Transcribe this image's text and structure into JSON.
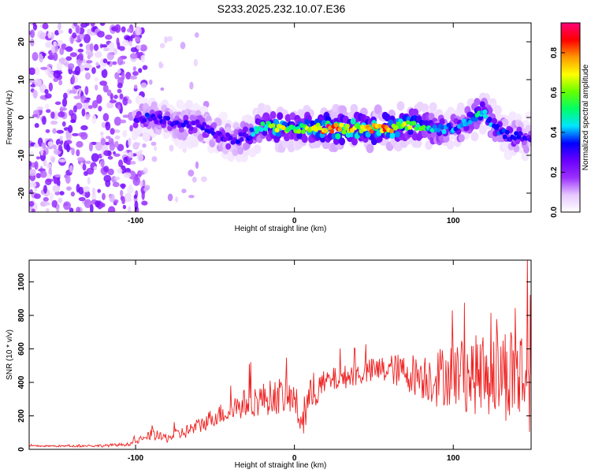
{
  "title": "S233.2025.232.10.07.E36",
  "chart_data": [
    {
      "type": "heatmap",
      "title": "",
      "xlabel": "Height of straight line (km)",
      "ylabel": "Frequency (Hz)",
      "xlim": [
        -167,
        149
      ],
      "ylim": [
        -25,
        25
      ],
      "xticks": [
        -100,
        0,
        100
      ],
      "yticks": [
        -20,
        -10,
        0,
        10,
        20
      ],
      "grid": false,
      "colorbar": {
        "label": "Normalized spectral amplitude",
        "range": [
          0,
          0.95
        ],
        "ticks": [
          0.0,
          0.2,
          0.4,
          0.6,
          0.8
        ],
        "tick_labels": [
          "0.0",
          "0.2",
          "0.4",
          "0.6",
          "0.8"
        ],
        "colormap": [
          "#ffffff",
          "#e6c8ff",
          "#9b30ff",
          "#6a00ff",
          "#0000ff",
          "#00e5ff",
          "#00ff66",
          "#66ff00",
          "#ffff00",
          "#ff9900",
          "#ff0000",
          "#ff0077"
        ]
      },
      "ridge": {
        "x": [
          -100,
          -90,
          -80,
          -70,
          -60,
          -50,
          -40,
          -30,
          -20,
          -10,
          0,
          10,
          20,
          30,
          40,
          50,
          60,
          70,
          80,
          90,
          100,
          110,
          118,
          125,
          135,
          149
        ],
        "freq": [
          -1,
          0,
          -1,
          -2,
          -2,
          -4,
          -6,
          -5,
          -2,
          -3,
          -3,
          -3,
          -3,
          -3,
          -3,
          -3,
          -3,
          -2,
          -2,
          -3,
          -3,
          -1,
          2,
          -2,
          -5,
          -5
        ],
        "amplitude": [
          0.3,
          0.35,
          0.3,
          0.3,
          0.3,
          0.3,
          0.3,
          0.35,
          0.5,
          0.7,
          0.6,
          0.65,
          0.9,
          0.8,
          0.75,
          0.85,
          0.8,
          0.65,
          0.55,
          0.45,
          0.4,
          0.45,
          0.5,
          0.4,
          0.35,
          0.3
        ]
      },
      "noise_region": {
        "x": [
          -167,
          -100
        ],
        "freq": [
          -25,
          25
        ],
        "amplitude": 0.25
      }
    },
    {
      "type": "line",
      "title": "",
      "xlabel": "Height of straight line (km)",
      "ylabel": "SNR (10 * v/v)",
      "xlim": [
        -167,
        149
      ],
      "ylim": [
        0,
        1130
      ],
      "xticks": [
        -100,
        0,
        100
      ],
      "yticks": [
        0,
        200,
        400,
        600,
        800,
        1000
      ],
      "grid": false,
      "series": [
        {
          "name": "SNR",
          "color": "#ee2222",
          "x": [
            -167,
            -140,
            -120,
            -105,
            -95,
            -90,
            -85,
            -80,
            -70,
            -60,
            -50,
            -40,
            -30,
            -20,
            -10,
            0,
            5,
            10,
            20,
            30,
            40,
            50,
            60,
            70,
            80,
            90,
            100,
            110,
            120,
            130,
            140,
            149
          ],
          "y": [
            20,
            20,
            22,
            30,
            60,
            90,
            70,
            70,
            100,
            140,
            200,
            230,
            280,
            300,
            320,
            300,
            150,
            320,
            400,
            430,
            450,
            470,
            480,
            460,
            440,
            430,
            460,
            440,
            450,
            460,
            450,
            420
          ],
          "spread": [
            5,
            6,
            8,
            10,
            20,
            30,
            30,
            30,
            40,
            50,
            60,
            70,
            90,
            100,
            110,
            100,
            120,
            100,
            80,
            70,
            70,
            80,
            90,
            110,
            140,
            180,
            200,
            230,
            250,
            280,
            320,
            320
          ]
        }
      ]
    }
  ]
}
